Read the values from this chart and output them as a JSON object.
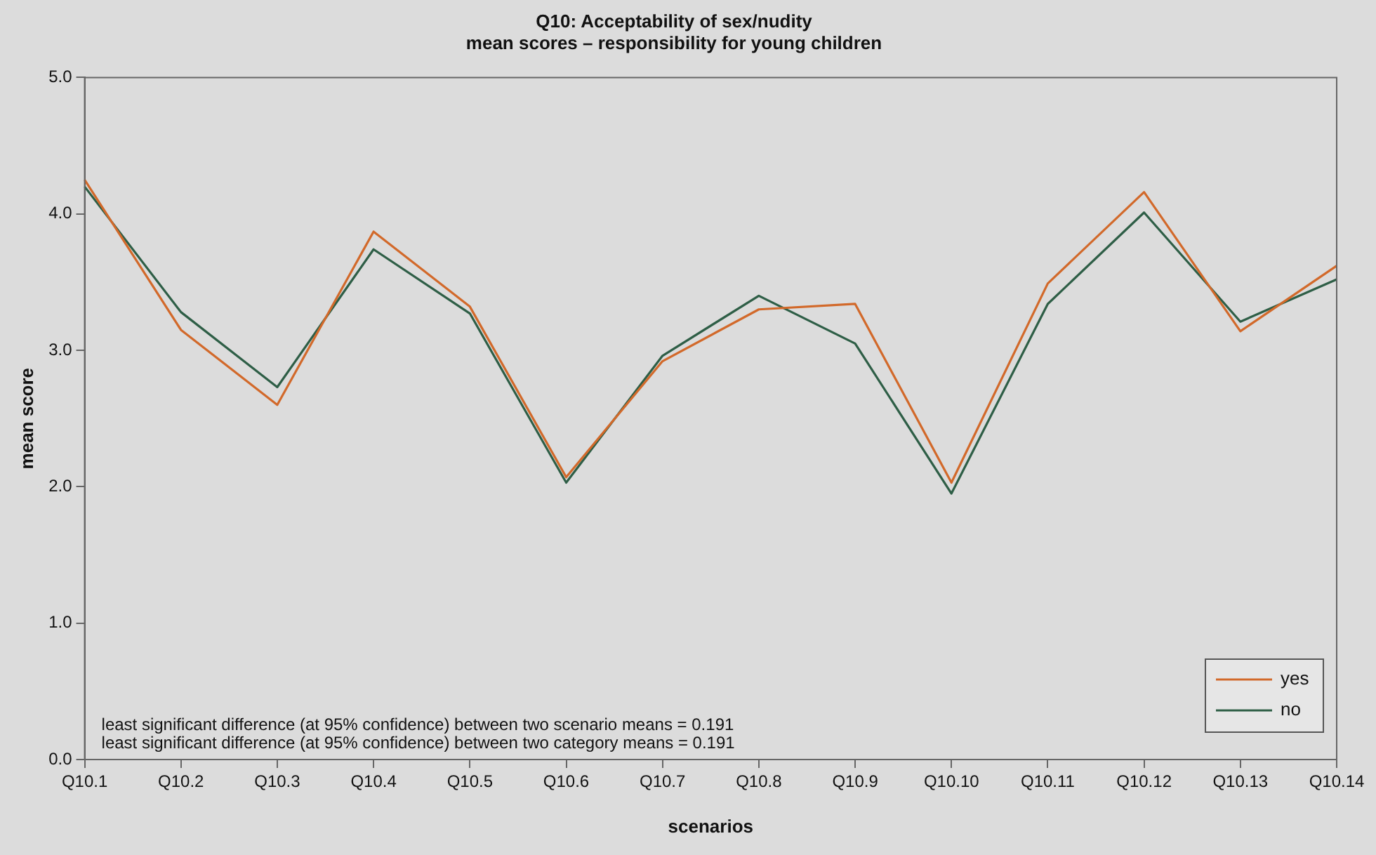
{
  "chart_data": {
    "type": "line",
    "title": "Q10: Acceptability of sex/nudity",
    "subtitle": "mean scores – responsibility for young children",
    "xlabel": "scenarios",
    "ylabel": "mean score",
    "categories": [
      "Q10.1",
      "Q10.2",
      "Q10.3",
      "Q10.4",
      "Q10.5",
      "Q10.6",
      "Q10.7",
      "Q10.8",
      "Q10.9",
      "Q10.10",
      "Q10.11",
      "Q10.12",
      "Q10.13",
      "Q10.14"
    ],
    "series": [
      {
        "name": "yes",
        "color": "#d2692a",
        "values": [
          4.25,
          3.15,
          2.6,
          3.87,
          3.32,
          2.07,
          2.92,
          3.3,
          3.34,
          2.03,
          3.49,
          4.16,
          3.14,
          3.62
        ]
      },
      {
        "name": "no",
        "color": "#2e5e46",
        "values": [
          4.2,
          3.28,
          2.73,
          3.74,
          3.27,
          2.03,
          2.96,
          3.4,
          3.05,
          1.95,
          3.34,
          4.01,
          3.21,
          3.52
        ]
      }
    ],
    "ylim": [
      0,
      5
    ],
    "yticks": [
      {
        "value": 0,
        "label": "0.0"
      },
      {
        "value": 1,
        "label": "1.0"
      },
      {
        "value": 2,
        "label": "2.0"
      },
      {
        "value": 3,
        "label": "3.0"
      },
      {
        "value": 4,
        "label": "4.0"
      },
      {
        "value": 5,
        "label": "5.0"
      }
    ],
    "grid": false,
    "legend": "bottom right",
    "marker": "none",
    "line_style": "solid",
    "annotations": [
      "least significant difference (at 95% confidence) between two scenario means = 0.191",
      "least significant difference (at 95% confidence) between two category means = 0.191"
    ]
  }
}
